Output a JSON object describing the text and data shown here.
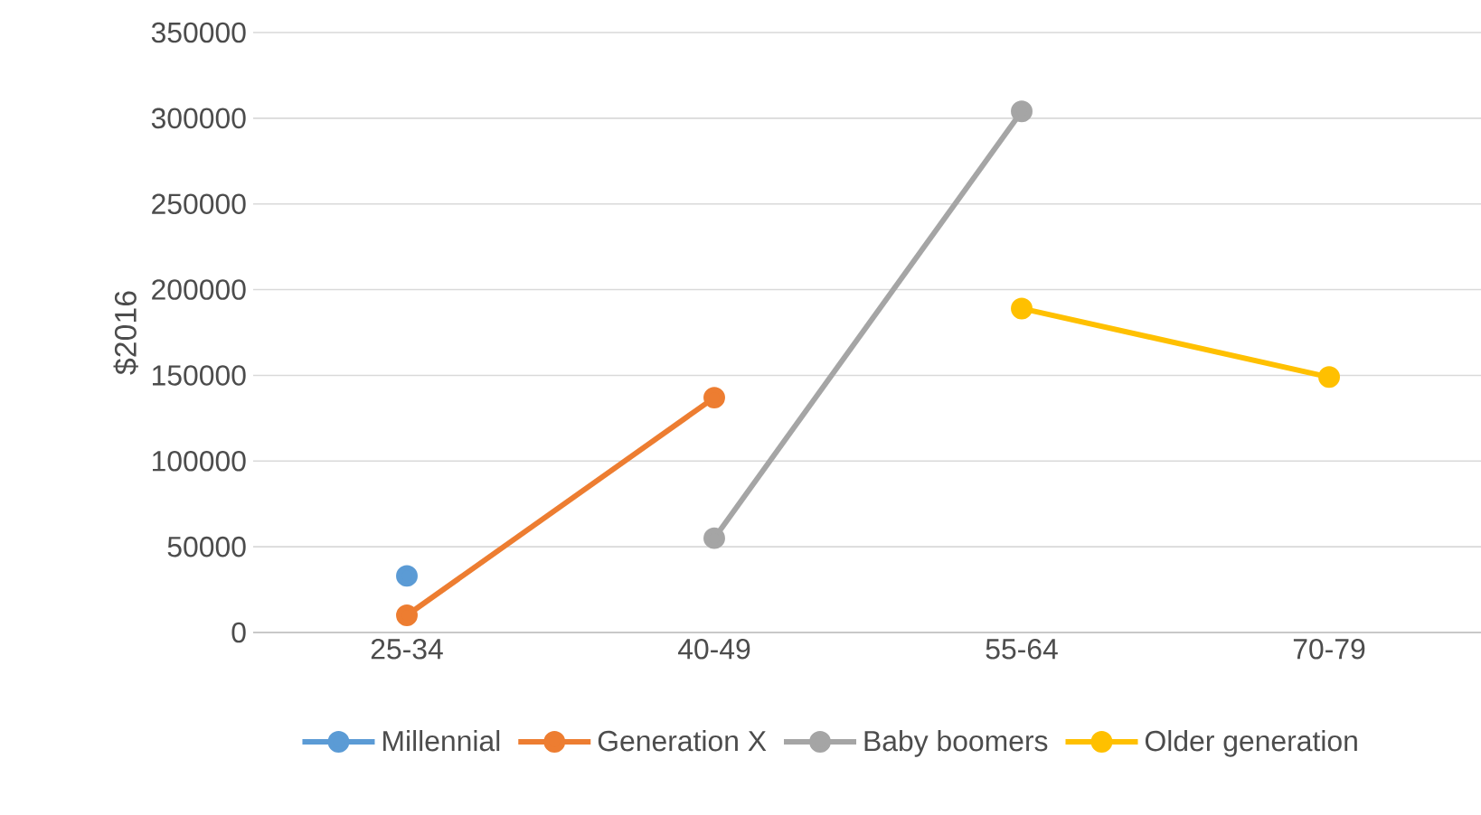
{
  "chart_data": {
    "type": "line",
    "ylabel": "$2016",
    "categories": [
      "25-34",
      "40-49",
      "55-64",
      "70-79"
    ],
    "series": [
      {
        "name": "Millennial",
        "color": "#5b9bd5",
        "values": [
          33000,
          null,
          null,
          null
        ]
      },
      {
        "name": "Generation X",
        "color": "#ed7d31",
        "values": [
          10000,
          137000,
          null,
          null
        ]
      },
      {
        "name": "Baby boomers",
        "color": "#a5a5a5",
        "values": [
          null,
          55000,
          304000,
          null
        ]
      },
      {
        "name": "Older generation",
        "color": "#ffc000",
        "values": [
          null,
          null,
          189000,
          149000
        ]
      }
    ],
    "ylim": [
      0,
      350000
    ],
    "yticks": [
      0,
      50000,
      100000,
      150000,
      200000,
      250000,
      300000,
      350000
    ],
    "grid": "y",
    "legend": "bottom",
    "marker": "circle",
    "line_style": "solid"
  }
}
